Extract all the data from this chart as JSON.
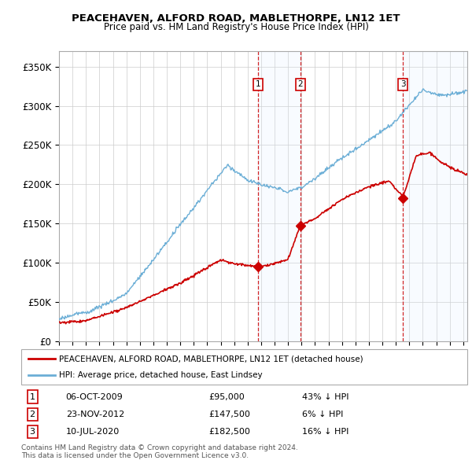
{
  "title1": "PEACEHAVEN, ALFORD ROAD, MABLETHORPE, LN12 1ET",
  "title2": "Price paid vs. HM Land Registry's House Price Index (HPI)",
  "ylim": [
    0,
    370000
  ],
  "yticks": [
    0,
    50000,
    100000,
    150000,
    200000,
    250000,
    300000,
    350000
  ],
  "ytick_labels": [
    "£0",
    "£50K",
    "£100K",
    "£150K",
    "£200K",
    "£250K",
    "£300K",
    "£350K"
  ],
  "legend_red": "PEACEHAVEN, ALFORD ROAD, MABLETHORPE, LN12 1ET (detached house)",
  "legend_blue": "HPI: Average price, detached house, East Lindsey",
  "transactions": [
    {
      "num": 1,
      "date": "06-OCT-2009",
      "price": "£95,000",
      "pct": "43% ↓ HPI",
      "year": 2009.77
    },
    {
      "num": 2,
      "date": "23-NOV-2012",
      "price": "£147,500",
      "pct": "6% ↓ HPI",
      "year": 2012.9
    },
    {
      "num": 3,
      "date": "10-JUL-2020",
      "price": "£182,500",
      "pct": "16% ↓ HPI",
      "year": 2020.53
    }
  ],
  "transaction_prices": [
    95000,
    147500,
    182500
  ],
  "footnote1": "Contains HM Land Registry data © Crown copyright and database right 2024.",
  "footnote2": "This data is licensed under the Open Government Licence v3.0.",
  "hpi_color": "#6baed6",
  "price_color": "#cc0000",
  "vline_color": "#cc0000",
  "shading_color": "#ddeeff",
  "background_color": "#ffffff",
  "grid_color": "#cccccc",
  "xlim_left": 1995.0,
  "xlim_right": 2025.3
}
